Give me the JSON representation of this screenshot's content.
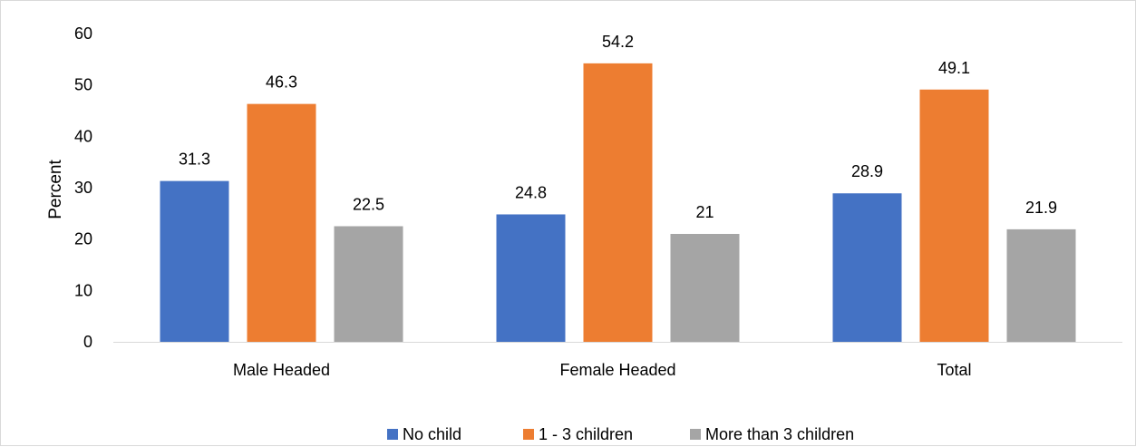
{
  "chart_data": {
    "type": "bar",
    "title": "",
    "xlabel": "",
    "ylabel": "Percent",
    "ylim": [
      0,
      60
    ],
    "yticks": [
      0,
      10,
      20,
      30,
      40,
      50,
      60
    ],
    "grid": false,
    "legend_position": "bottom",
    "categories": [
      "Male Headed",
      "Female Headed",
      "Total"
    ],
    "series": [
      {
        "name": "No child",
        "color": "#4472c4",
        "values": [
          31.3,
          24.8,
          28.9
        ],
        "labels": [
          "31.3",
          "24.8",
          "28.9"
        ]
      },
      {
        "name": "1 - 3 children",
        "color": "#ed7d31",
        "values": [
          46.3,
          54.2,
          49.1
        ],
        "labels": [
          "46.3",
          "54.2",
          "49.1"
        ]
      },
      {
        "name": "More than 3 children",
        "color": "#a5a5a5",
        "values": [
          22.5,
          21,
          21.9
        ],
        "labels": [
          "22.5",
          "21",
          "21.9"
        ]
      }
    ]
  }
}
